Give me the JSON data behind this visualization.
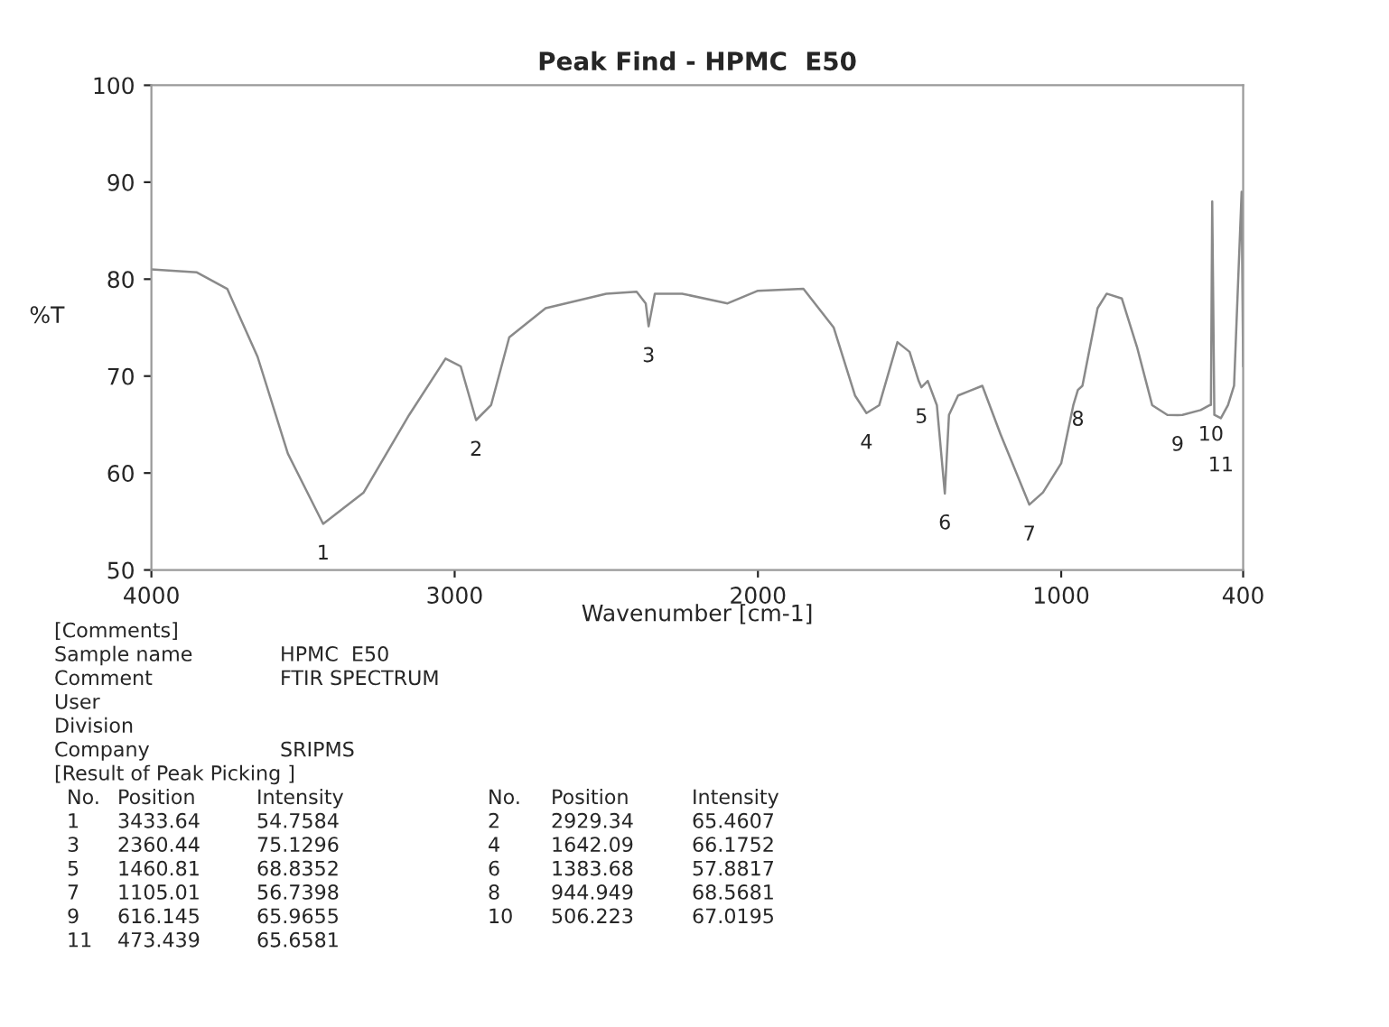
{
  "chart_data": {
    "type": "line",
    "title": "Peak Find - HPMC  E50",
    "xlabel": "Wavenumber [cm-1]",
    "ylabel": "%T",
    "x": [
      4000,
      3850,
      3750,
      3650,
      3550,
      3433.64,
      3300,
      3150,
      3030,
      2980,
      2929.34,
      2880,
      2820,
      2700,
      2500,
      2400,
      2370,
      2360.44,
      2340,
      2250,
      2100,
      2000,
      1850,
      1750,
      1680,
      1642.09,
      1600,
      1540,
      1500,
      1470,
      1460.81,
      1440,
      1410,
      1383.68,
      1370,
      1340,
      1300,
      1260,
      1200,
      1105.01,
      1060,
      1000,
      960,
      944.949,
      930,
      880,
      850,
      800,
      750,
      700,
      650,
      616.145,
      600,
      540,
      510,
      506.223,
      502,
      495,
      473.439,
      450,
      430,
      405,
      400
    ],
    "series": [
      {
        "color": "#8a8a8a",
        "values": [
          81,
          80.7,
          79,
          72,
          62,
          54.76,
          58,
          66,
          71.8,
          71,
          65.46,
          67,
          74,
          77,
          78.5,
          78.7,
          77.5,
          75.13,
          78.5,
          78.5,
          77.5,
          78.8,
          79,
          75,
          68,
          66.18,
          67,
          73.5,
          72.5,
          69.5,
          68.84,
          69.5,
          67,
          57.88,
          66,
          68,
          68.5,
          69,
          64,
          56.74,
          58,
          61,
          67,
          68.57,
          69,
          77,
          78.5,
          78,
          73,
          67,
          66,
          65.97,
          66,
          66.5,
          67,
          67.02,
          88,
          66,
          65.66,
          67,
          69,
          89,
          71
        ]
      }
    ],
    "xlim": [
      4000,
      400
    ],
    "xticks": [
      4000,
      3000,
      2000,
      1000,
      400
    ],
    "ylim": [
      50,
      100
    ],
    "yticks": [
      50,
      60,
      70,
      80,
      90,
      100
    ],
    "grid": false,
    "legend": false,
    "marker": "none",
    "line_style": "solid",
    "annotations": [
      {
        "text": "1",
        "x": 3433.64,
        "y": 54.7584
      },
      {
        "text": "2",
        "x": 2929.34,
        "y": 65.4607
      },
      {
        "text": "3",
        "x": 2360.44,
        "y": 75.1296
      },
      {
        "text": "4",
        "x": 1642.09,
        "y": 66.1752
      },
      {
        "text": "5",
        "x": 1460.81,
        "y": 68.8352
      },
      {
        "text": "6",
        "x": 1383.68,
        "y": 57.8817
      },
      {
        "text": "7",
        "x": 1105.01,
        "y": 56.7398
      },
      {
        "text": "8",
        "x": 944.949,
        "y": 68.5681
      },
      {
        "text": "9",
        "x": 616.145,
        "y": 65.9655
      },
      {
        "text": "10",
        "x": 506.223,
        "y": 67.0195
      },
      {
        "text": "11",
        "x": 473.439,
        "y": 65.6581
      },
      "[Comments]",
      "Sample name\tHPMC  E50",
      "Comment\tFTIR SPECTRUM",
      "User",
      "Division",
      "Company\tSRIPMS",
      "[Result of Peak Picking ]",
      "No.\tPosition\tIntensity\tNo.\tPosition\tIntensity",
      "1\t3433.64\t54.7584\t2\t2929.34\t65.4607",
      "3\t2360.44\t75.1296\t4\t1642.09\t66.1752",
      "5\t1460.81\t68.8352\t6\t1383.68\t57.8817",
      "7\t1105.01\t56.7398\t8\t944.949\t68.5681",
      "9\t616.145\t65.9655\t10\t506.223\t67.0195",
      "11\t473.439\t65.6581"
    ]
  }
}
